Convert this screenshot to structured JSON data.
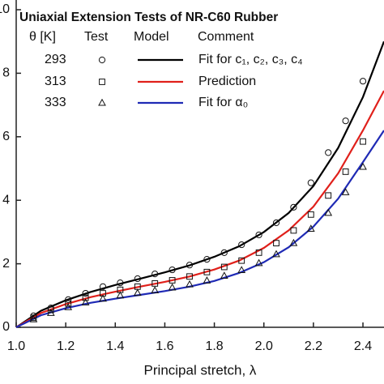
{
  "chart_data": {
    "type": "scatter",
    "title": "Uniaxial Extension Tests of NR-C60 Rubber",
    "x_label": "Principal stretch, λ",
    "xlim": [
      1,
      2.485
    ],
    "ylim": [
      0,
      10
    ],
    "xticks": [
      {
        "value": 1,
        "label": "1.0"
      },
      1.2,
      1.4,
      1.6,
      1.8,
      {
        "value": 2,
        "label": "2.0"
      },
      2.2,
      2.4
    ],
    "yticks": [
      0,
      2,
      4,
      6,
      8,
      10
    ],
    "legend_headers": [
      "θ [K]",
      "Test",
      "Model",
      "Comment"
    ],
    "series": [
      {
        "name": "293",
        "marker": "circle",
        "color": "#111111",
        "x": [
          1.07,
          1.14,
          1.21,
          1.28,
          1.35,
          1.42,
          1.49,
          1.56,
          1.63,
          1.7,
          1.77,
          1.84,
          1.91,
          1.98,
          2.05,
          2.12,
          2.19,
          2.26,
          2.33,
          2.4
        ],
        "values": [
          0.36,
          0.61,
          0.87,
          1.07,
          1.28,
          1.4,
          1.53,
          1.68,
          1.81,
          1.96,
          2.14,
          2.35,
          2.6,
          2.91,
          3.29,
          3.78,
          4.55,
          5.5,
          6.5,
          7.75
        ]
      },
      {
        "name": "313",
        "marker": "square",
        "color": "#111111",
        "x": [
          1.07,
          1.14,
          1.21,
          1.28,
          1.35,
          1.42,
          1.49,
          1.56,
          1.63,
          1.7,
          1.77,
          1.84,
          1.91,
          1.98,
          2.05,
          2.12,
          2.19,
          2.26,
          2.33,
          2.4
        ],
        "values": [
          0.3,
          0.55,
          0.75,
          0.93,
          1.07,
          1.18,
          1.28,
          1.38,
          1.48,
          1.6,
          1.74,
          1.9,
          2.1,
          2.35,
          2.65,
          3.05,
          3.55,
          4.15,
          4.9,
          5.85
        ]
      },
      {
        "name": "333",
        "marker": "triangle",
        "color": "#111111",
        "x": [
          1.07,
          1.14,
          1.21,
          1.28,
          1.35,
          1.42,
          1.49,
          1.56,
          1.63,
          1.7,
          1.77,
          1.84,
          1.91,
          1.98,
          2.05,
          2.12,
          2.19,
          2.26,
          2.33,
          2.4
        ],
        "values": [
          0.25,
          0.45,
          0.63,
          0.78,
          0.9,
          1.0,
          1.08,
          1.16,
          1.25,
          1.35,
          1.47,
          1.62,
          1.8,
          2.02,
          2.3,
          2.65,
          3.1,
          3.6,
          4.25,
          5.05
        ]
      }
    ],
    "models": [
      {
        "comment": "Fit for c₁, c₂, c₃, c₄",
        "color": "#000000",
        "x": [
          1.0,
          1.1,
          1.2,
          1.3,
          1.4,
          1.5,
          1.6,
          1.7,
          1.8,
          1.9,
          2.0,
          2.1,
          2.2,
          2.3,
          2.4,
          2.485
        ],
        "values": [
          0,
          0.52,
          0.85,
          1.11,
          1.33,
          1.53,
          1.73,
          1.95,
          2.22,
          2.55,
          3.0,
          3.6,
          4.45,
          5.65,
          7.25,
          9.0
        ]
      },
      {
        "comment": "Prediction",
        "color": "#e0201b",
        "x": [
          1.0,
          1.1,
          1.2,
          1.3,
          1.4,
          1.5,
          1.6,
          1.7,
          1.8,
          1.9,
          2.0,
          2.1,
          2.2,
          2.3,
          2.4,
          2.485
        ],
        "values": [
          0,
          0.45,
          0.73,
          0.95,
          1.12,
          1.28,
          1.43,
          1.6,
          1.82,
          2.1,
          2.5,
          3.05,
          3.8,
          4.85,
          6.2,
          7.45
        ]
      },
      {
        "comment": "Fit for α₀",
        "color": "#1f2ab5",
        "x": [
          1.0,
          1.1,
          1.2,
          1.3,
          1.4,
          1.5,
          1.6,
          1.7,
          1.8,
          1.9,
          2.0,
          2.1,
          2.2,
          2.3,
          2.4,
          2.485
        ],
        "values": [
          0,
          0.38,
          0.6,
          0.77,
          0.9,
          1.02,
          1.14,
          1.28,
          1.46,
          1.71,
          2.05,
          2.52,
          3.17,
          4.05,
          5.2,
          6.2
        ]
      }
    ]
  }
}
